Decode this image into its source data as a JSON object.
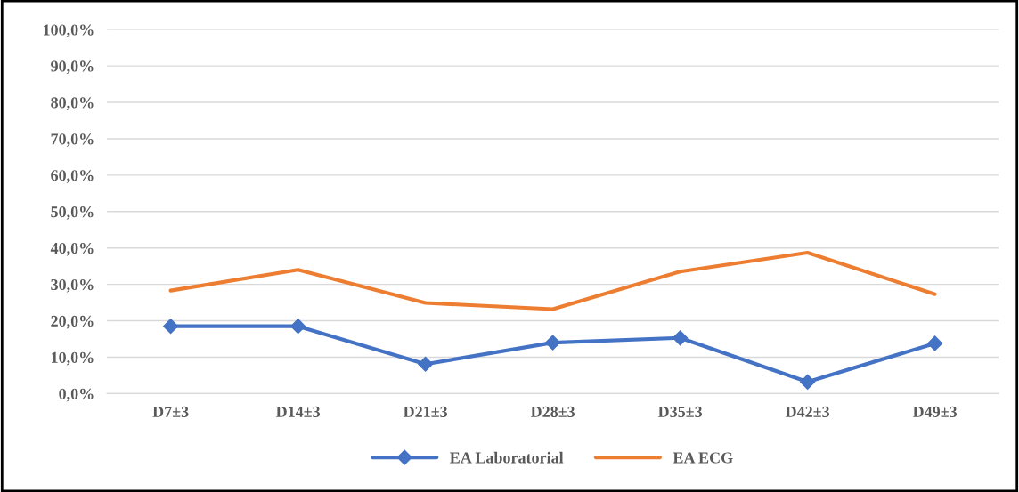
{
  "chart_data": {
    "type": "line",
    "categories": [
      "D7±3",
      "D14±3",
      "D21±3",
      "D28±3",
      "D35±3",
      "D42±3",
      "D49±3"
    ],
    "series": [
      {
        "name": "EA Laboratorial",
        "color": "#4472c4",
        "marker": "diamond",
        "values": [
          18.5,
          18.5,
          8.1,
          14.0,
          15.3,
          3.2,
          13.8
        ]
      },
      {
        "name": "EA ECG",
        "color": "#ed7d31",
        "marker": "none",
        "values": [
          28.3,
          34.0,
          24.9,
          23.2,
          33.5,
          38.7,
          27.3
        ]
      }
    ],
    "ylim": [
      0,
      100
    ],
    "yticks": [
      {
        "value": 0,
        "label": "0,0%"
      },
      {
        "value": 10,
        "label": "10,0%"
      },
      {
        "value": 20,
        "label": "20,0%"
      },
      {
        "value": 30,
        "label": "30,0%"
      },
      {
        "value": 40,
        "label": "40,0%"
      },
      {
        "value": 50,
        "label": "50,0%"
      },
      {
        "value": 60,
        "label": "60,0%"
      },
      {
        "value": 70,
        "label": "70,0%"
      },
      {
        "value": 80,
        "label": "80,0%"
      },
      {
        "value": 90,
        "label": "90,0%"
      },
      {
        "value": 100,
        "label": "100,0%"
      }
    ],
    "grid": "y",
    "legend": "bottom",
    "line_style": "solid"
  }
}
